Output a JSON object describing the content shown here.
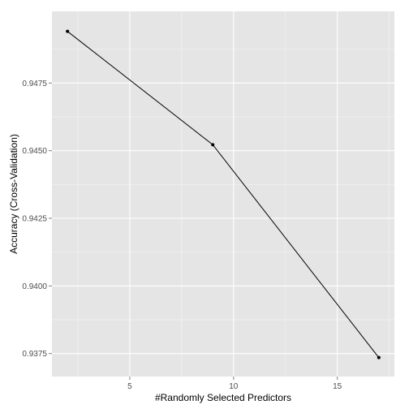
{
  "chart_data": {
    "type": "line",
    "xlabel": "#Randomly Selected Predictors",
    "ylabel": "Accuracy (Cross-Validation)",
    "xlim": [
      1.25,
      17.75
    ],
    "ylim": [
      0.93665,
      0.95015
    ],
    "x_ticks": [
      5,
      10,
      15
    ],
    "x_tick_labels": [
      "5",
      "10",
      "15"
    ],
    "x_minor_ticks": [
      2.5,
      7.5,
      12.5,
      17.5
    ],
    "y_ticks": [
      0.9375,
      0.94,
      0.9425,
      0.945,
      0.9475
    ],
    "y_tick_labels": [
      "0.9375",
      "0.9400",
      "0.9425",
      "0.9450",
      "0.9475"
    ],
    "y_minor_ticks": [
      0.93875,
      0.94125,
      0.94375,
      0.94625,
      0.94875
    ],
    "grid": true,
    "series": [
      {
        "x": [
          2,
          9,
          17
        ],
        "y": [
          0.94941,
          0.94522,
          0.93735
        ]
      }
    ],
    "colors": {
      "panel_background": "#e5e5e5",
      "grid_major": "#ffffff",
      "grid_minor": "#f2f2f2",
      "line": "#000000",
      "point": "#000000",
      "tick_label": "#4d4d4d"
    }
  }
}
